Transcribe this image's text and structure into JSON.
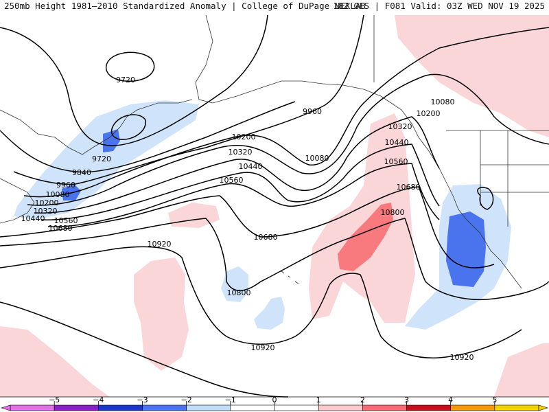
{
  "header": {
    "left": "250mb Height 1981–2010 Standardized Anomaly | College of DuPage NEXLAB",
    "right": "18Z GFS | F081 Valid: 03Z WED NOV 19 2025"
  },
  "contour_labels": [
    "9720",
    "9720",
    "9840",
    "9960",
    "9960",
    "10080",
    "10080",
    "10080",
    "10200",
    "10200",
    "10200",
    "10320",
    "10320",
    "10320",
    "10440",
    "10440",
    "10440",
    "10560",
    "10560",
    "10560",
    "10680",
    "10680",
    "10680",
    "10800",
    "10800",
    "10920",
    "10920",
    "10920"
  ],
  "colorbar": {
    "ticks": [
      "−5",
      "−4",
      "−3",
      "−2",
      "−1",
      "0",
      "1",
      "2",
      "3",
      "4",
      "5"
    ],
    "colors": [
      "#e070e8",
      "#8a1fc4",
      "#1a37c8",
      "#4a74ee",
      "#bfdcfa",
      "#ffffff",
      "#ffffff",
      "#fbc8cc",
      "#f56d72",
      "#c4101a",
      "#f39a0c",
      "#f6d000"
    ]
  },
  "anomaly_colors": {
    "weak_positive": "#fbd6d8",
    "moderate_positive": "#f87a7e",
    "weak_negative": "#cfe4fa",
    "moderate_negative": "#4a74ee"
  }
}
